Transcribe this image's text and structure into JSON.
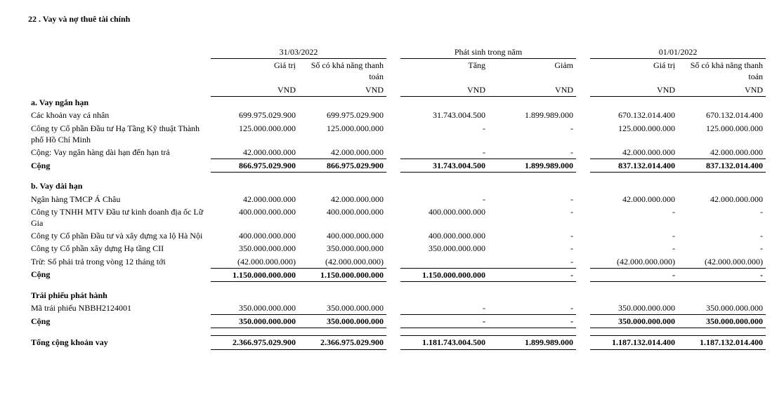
{
  "title": "22 .  Vay và nợ thuê tài chính",
  "headers": {
    "period1": "31/03/2022",
    "period2": "Phát sinh trong năm",
    "period3": "01/01/2022",
    "value": "Giá trị",
    "payable": "Số có khả năng thanh toán",
    "increase": "Tăng",
    "decrease": "Giảm",
    "unit": "VND"
  },
  "sections": {
    "a_title": "a. Vay ngắn hạn",
    "b_title": "b. Vay dài hạn",
    "c_title": "Trái phiếu phát hành",
    "sum": "Cộng",
    "grand": "Tổng cộng khoản vay"
  },
  "a": [
    {
      "label": "Các khoản vay cá nhân",
      "v1": "699.975.029.900",
      "v2": "699.975.029.900",
      "v3": "31.743.004.500",
      "v4": "1.899.989.000",
      "v5": "670.132.014.400",
      "v6": "670.132.014.400"
    },
    {
      "label": "Công ty Cổ phần Đầu tư Hạ Tầng Kỹ thuật Thành phố Hồ Chí Minh",
      "v1": "125.000.000.000",
      "v2": "125.000.000.000",
      "v3": "-",
      "v4": "-",
      "v5": "125.000.000.000",
      "v6": "125.000.000.000"
    },
    {
      "label": "Cộng: Vay ngân hàng dài hạn đến hạn trả",
      "v1": "42.000.000.000",
      "v2": "42.000.000.000",
      "v3": "-",
      "v4": "-",
      "v5": "42.000.000.000",
      "v6": "42.000.000.000"
    }
  ],
  "a_sum": {
    "v1": "866.975.029.900",
    "v2": "866.975.029.900",
    "v3": "31.743.004.500",
    "v4": "1.899.989.000",
    "v5": "837.132.014.400",
    "v6": "837.132.014.400"
  },
  "b": [
    {
      "label": "Ngân hàng TMCP Á Châu",
      "v1": "42.000.000.000",
      "v2": "42.000.000.000",
      "v3": "-",
      "v4": "-",
      "v5": "42.000.000.000",
      "v6": "42.000.000.000"
    },
    {
      "label": "Công ty TNHH MTV Đầu tư kinh doanh địa ốc Lữ Gia",
      "v1": "400.000.000.000",
      "v2": "400.000.000.000",
      "v3": "400.000.000.000",
      "v4": "-",
      "v5": "-",
      "v6": "-"
    },
    {
      "label": "Công ty Cổ phần Đầu tư và xây dựng xa lộ Hà Nội",
      "v1": "400.000.000.000",
      "v2": "400.000.000.000",
      "v3": "400.000.000.000",
      "v4": "-",
      "v5": "-",
      "v6": "-"
    },
    {
      "label": "Công ty Cổ phần xây dựng Hạ tầng CII",
      "v1": "350.000.000.000",
      "v2": "350.000.000.000",
      "v3": "350.000.000.000",
      "v4": "-",
      "v5": "-",
      "v6": "-"
    },
    {
      "label": "Trừ: Số phải trả trong vòng 12 tháng tới",
      "v1": "(42.000.000.000)",
      "v2": "(42.000.000.000)",
      "v3": "",
      "v4": "-",
      "v5": "(42.000.000.000)",
      "v6": "(42.000.000.000)"
    }
  ],
  "b_sum": {
    "v1": "1.150.000.000.000",
    "v2": "1.150.000.000.000",
    "v3": "1.150.000.000.000",
    "v4": "-",
    "v5": "-",
    "v6": "-"
  },
  "c": [
    {
      "label": "Mã trái phiếu NBBH2124001",
      "v1": "350.000.000.000",
      "v2": "350.000.000.000",
      "v3": "-",
      "v4": "-",
      "v5": "350.000.000.000",
      "v6": "350.000.000.000"
    }
  ],
  "c_sum": {
    "v1": "350.000.000.000",
    "v2": "350.000.000.000",
    "v3": "-",
    "v4": "-",
    "v5": "350.000.000.000",
    "v6": "350.000.000.000"
  },
  "grand": {
    "v1": "2.366.975.029.900",
    "v2": "2.366.975.029.900",
    "v3": "1.181.743.004.500",
    "v4": "1.899.989.000",
    "v5": "1.187.132.014.400",
    "v6": "1.187.132.014.400"
  }
}
